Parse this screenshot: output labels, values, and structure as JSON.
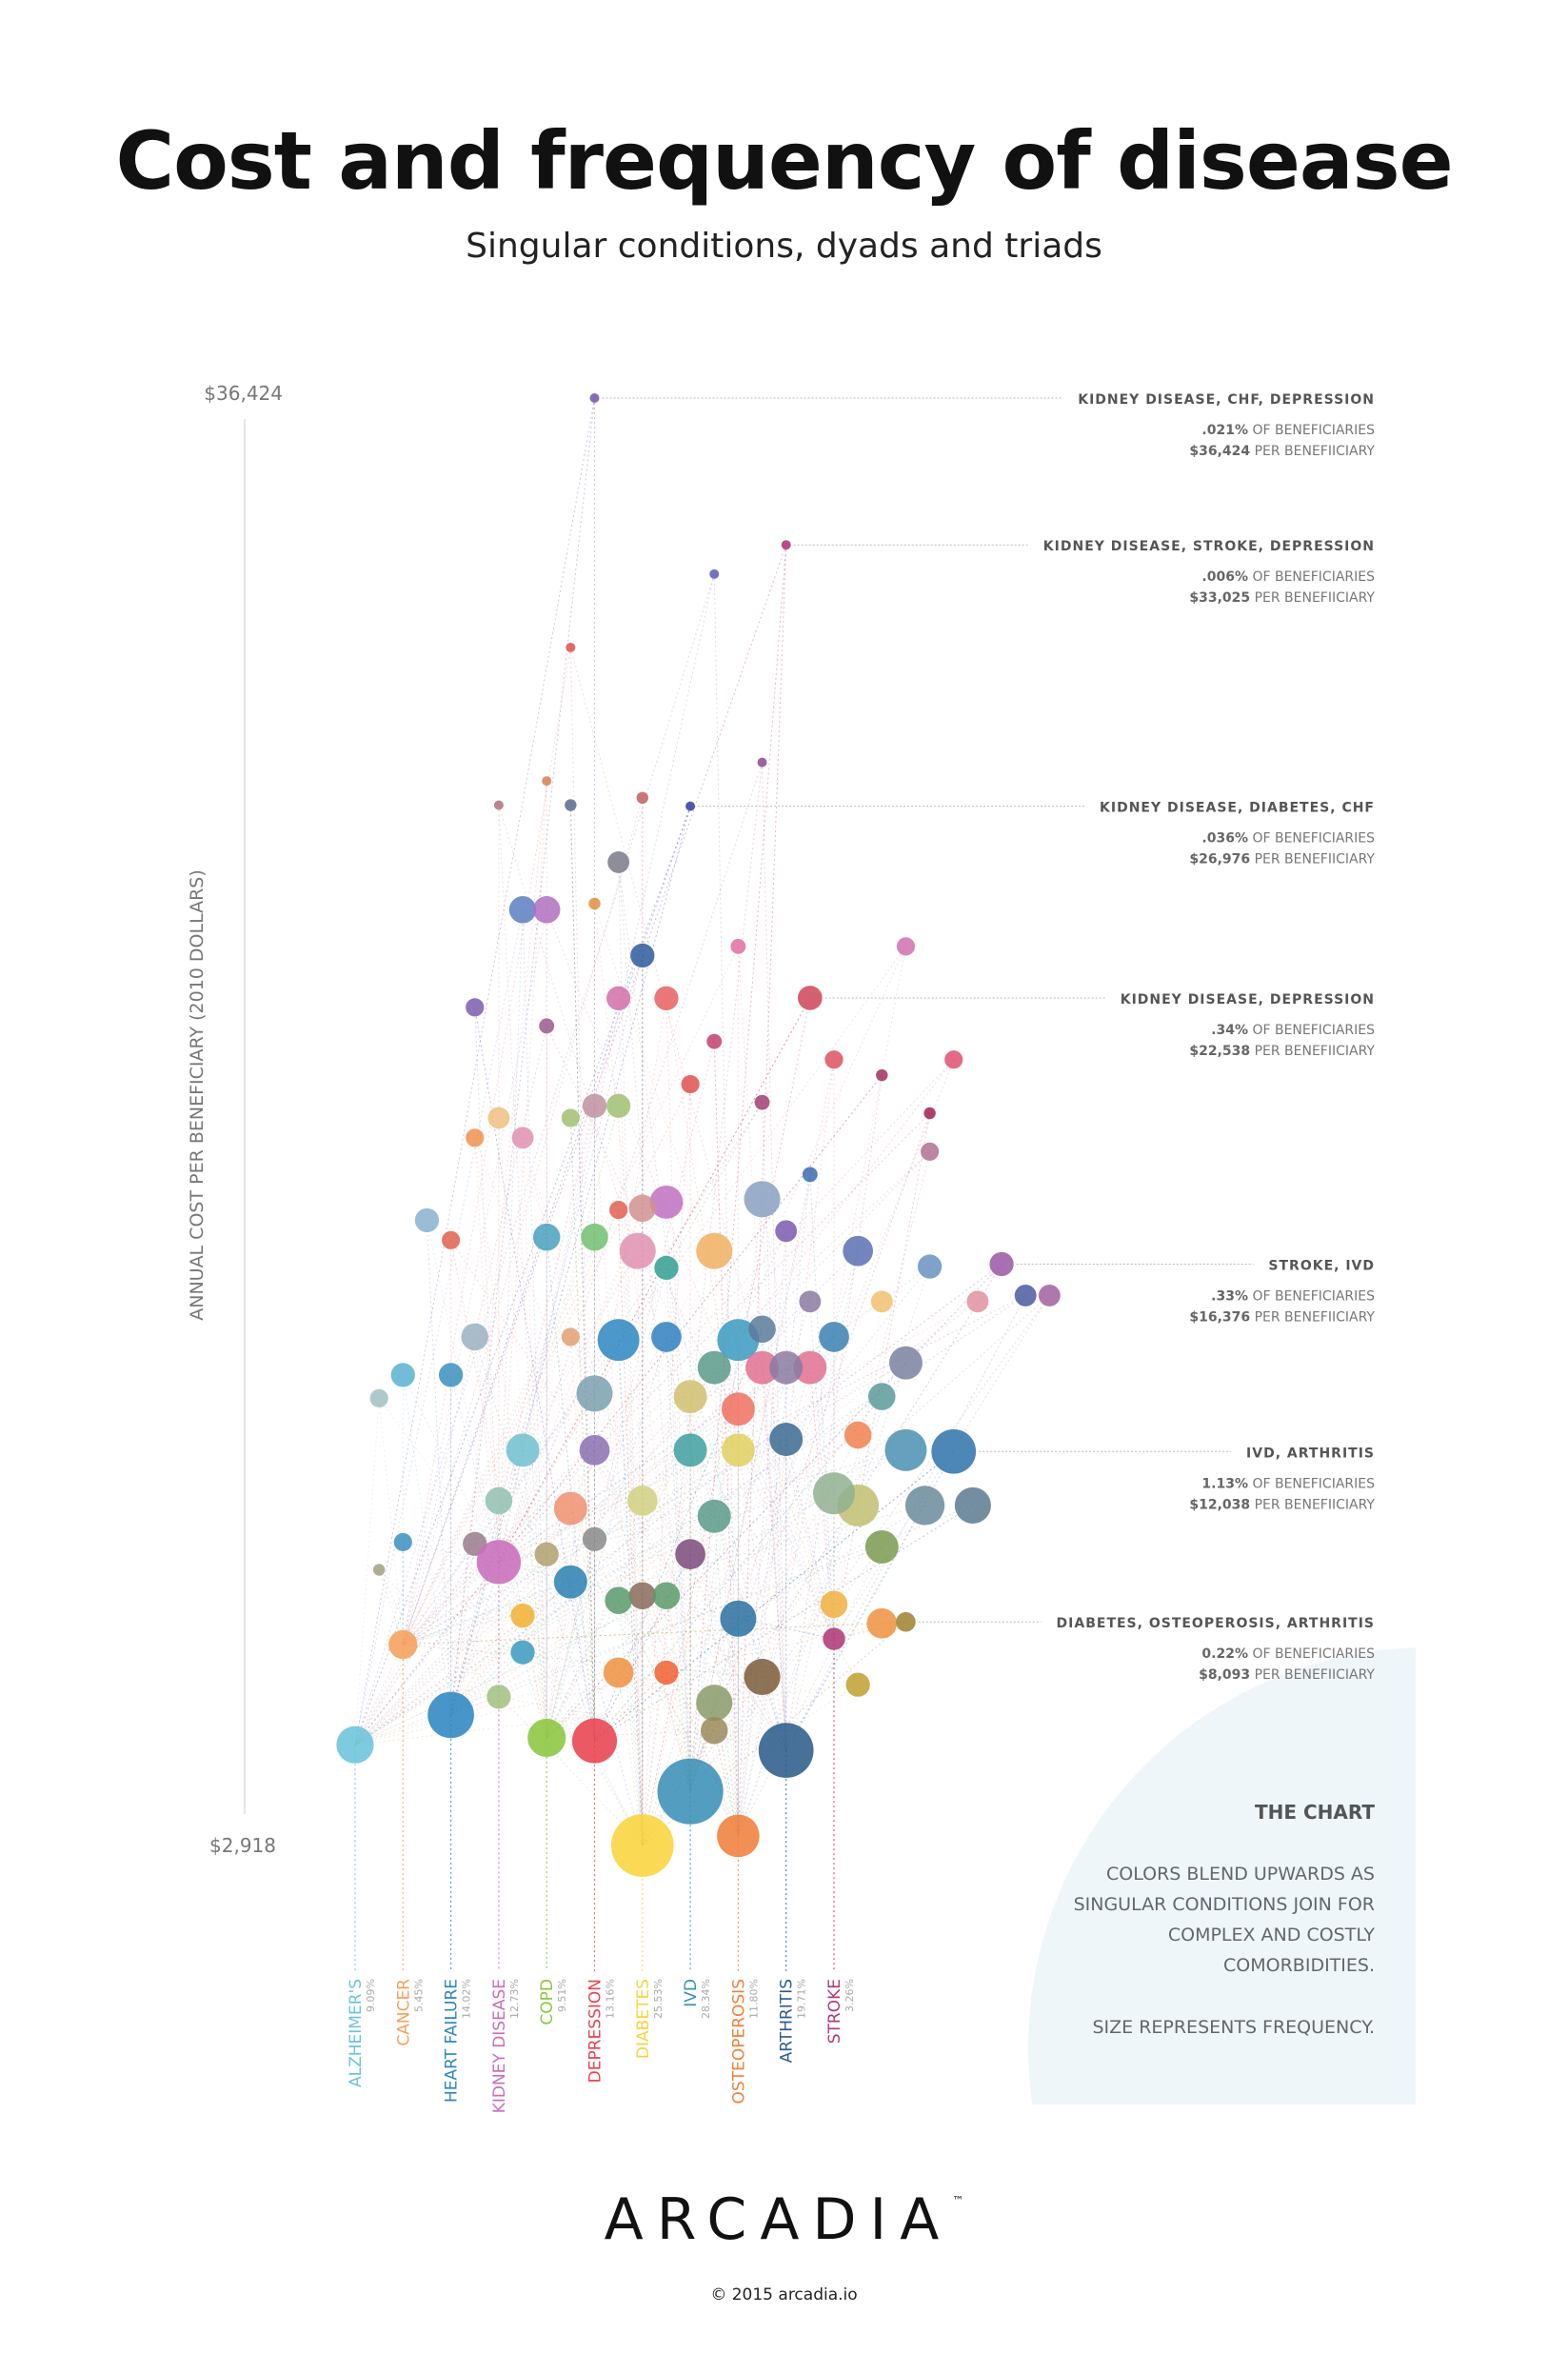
{
  "header": {
    "title": "Cost and frequency of disease",
    "subtitle": "Singular conditions, dyads and triads"
  },
  "chart_data": {
    "type": "scatter",
    "subtype": "bubble",
    "ylabel": "ANNUAL COST PER BENEFICIARY (2010 DOLLARS)",
    "ylim": [
      2918,
      36424
    ],
    "y_tick_labels": [
      "$36,424",
      "$2,918"
    ],
    "size_encoding": "frequency (% of beneficiaries)",
    "grid": false,
    "categories": [
      {
        "name": "ALZHEIMER'S",
        "pct_label": "9.09%",
        "pct": 9.09,
        "cost": 5250,
        "color": "#6cc3d9"
      },
      {
        "name": "CANCER",
        "pct_label": "5.45%",
        "pct": 5.45,
        "cost": 7570,
        "color": "#f5a05a"
      },
      {
        "name": "HEART FAILURE",
        "pct_label": "14.02%",
        "pct": 14.02,
        "cost": 5940,
        "color": "#2e86c1"
      },
      {
        "name": "KIDNEY DISEASE",
        "pct_label": "12.73%",
        "pct": 12.73,
        "cost": 9480,
        "color": "#c86dbb"
      },
      {
        "name": "COPD",
        "pct_label": "9.51%",
        "pct": 9.51,
        "cost": 5410,
        "color": "#8cc63f"
      },
      {
        "name": "DEPRESSION",
        "pct_label": "13.16%",
        "pct": 13.16,
        "cost": 5340,
        "color": "#e8434f"
      },
      {
        "name": "DIABETES",
        "pct_label": "25.53%",
        "pct": 25.53,
        "cost": 2918,
        "color": "#f9d43c"
      },
      {
        "name": "IVD",
        "pct_label": "28.34%",
        "pct": 28.34,
        "cost": 4170,
        "color": "#3a8fb7"
      },
      {
        "name": "OSTEOPEROSIS",
        "pct_label": "11.80%",
        "pct": 11.8,
        "cost": 3140,
        "color": "#f0803c"
      },
      {
        "name": "ARTHRITIS",
        "pct_label": "19.71%",
        "pct": 19.71,
        "cost": 5120,
        "color": "#2f5d8c"
      },
      {
        "name": "STROKE",
        "pct_label": "3.26%",
        "pct": 3.26,
        "cost": 7700,
        "color": "#b03a7a"
      }
    ],
    "annotations": [
      {
        "label": "KIDNEY DISEASE, CHF, DEPRESSION",
        "pct_text": ".021%",
        "cost_text": "$36,424",
        "pct": 0.021,
        "cost": 36424,
        "x": 5.0,
        "color": "#7a5db0"
      },
      {
        "label": "KIDNEY DISEASE, STROKE, DEPRESSION",
        "pct_text": ".006%",
        "cost_text": "$33,025",
        "pct": 0.006,
        "cost": 33025,
        "x": 9.0,
        "color": "#b03a7a"
      },
      {
        "label": "KIDNEY DISEASE, DIABETES, CHF",
        "pct_text": ".036%",
        "cost_text": "$26,976",
        "pct": 0.036,
        "cost": 26976,
        "x": 7.0,
        "color": "#3a4aa0"
      },
      {
        "label": "KIDNEY DISEASE, DEPRESSION",
        "pct_text": ".34%",
        "cost_text": "$22,538",
        "pct": 0.34,
        "cost": 22538,
        "x": 9.5,
        "color": "#d05060"
      },
      {
        "label": "STROKE, IVD",
        "pct_text": ".33%",
        "cost_text": "$16,376",
        "pct": 0.33,
        "cost": 16376,
        "x": 13.5,
        "color": "#a060a8"
      },
      {
        "label": "IVD, ARTHRITIS",
        "pct_text": "1.13%",
        "cost_text": "$12,038",
        "pct": 1.13,
        "cost": 12038,
        "x": 12.5,
        "color": "#3a7ab0"
      },
      {
        "label": "DIABETES, OSTEOPEROSIS, ARTHRITIS",
        "pct_text": "0.22%",
        "cost_text": "$8,093",
        "pct": 0.22,
        "cost": 8093,
        "x": 11.5,
        "color": "#a08a3a"
      }
    ],
    "annotation_suffix_pct": "OF BENEFICIARIES",
    "annotation_suffix_cost": "PER BENEFIICIARY",
    "other_points_fields": [
      "x",
      "cost",
      "pct",
      "color"
    ],
    "other_points": [
      [
        7.5,
        32350,
        0.05,
        "#5a5db0"
      ],
      [
        4.5,
        30650,
        0.05,
        "#e05050"
      ],
      [
        8.5,
        27990,
        0.02,
        "#8a4a8a"
      ],
      [
        4.0,
        27560,
        0.05,
        "#d08050"
      ],
      [
        3.0,
        27000,
        0.05,
        "#b07080"
      ],
      [
        4.5,
        27000,
        0.08,
        "#5a6a8a"
      ],
      [
        6.0,
        27170,
        0.08,
        "#c06060"
      ],
      [
        5.5,
        25680,
        0.27,
        "#7a7a8a"
      ],
      [
        11.5,
        23730,
        0.19,
        "#d070b0"
      ],
      [
        8.0,
        23730,
        0.13,
        "#e070a0"
      ],
      [
        5.0,
        24720,
        0.08,
        "#e09040"
      ],
      [
        3.5,
        24580,
        0.42,
        "#5b7fc0"
      ],
      [
        4.0,
        24580,
        0.42,
        "#b06fc0"
      ],
      [
        6.0,
        23520,
        0.33,
        "#2e5a9c"
      ],
      [
        5.5,
        22530,
        0.33,
        "#d46fa8"
      ],
      [
        6.5,
        22530,
        0.33,
        "#e86060"
      ],
      [
        2.5,
        22320,
        0.19,
        "#7a5db0"
      ],
      [
        12.5,
        21110,
        0.19,
        "#e05070"
      ],
      [
        10.0,
        21110,
        0.19,
        "#e05060"
      ],
      [
        7.5,
        21530,
        0.13,
        "#c04070"
      ],
      [
        11.0,
        20750,
        0.08,
        "#a03060"
      ],
      [
        12.0,
        19870,
        0.08,
        "#a02050"
      ],
      [
        8.5,
        20120,
        0.13,
        "#a04070"
      ],
      [
        4.0,
        21890,
        0.13,
        "#9a5a8a"
      ],
      [
        5.0,
        20040,
        0.33,
        "#c090a0"
      ],
      [
        5.5,
        20040,
        0.33,
        "#a0c070"
      ],
      [
        3.0,
        19760,
        0.27,
        "#f0c080"
      ],
      [
        4.5,
        19760,
        0.19,
        "#a0c070"
      ],
      [
        7.0,
        20540,
        0.19,
        "#e05050"
      ],
      [
        3.5,
        19300,
        0.27,
        "#e090b0"
      ],
      [
        2.5,
        19300,
        0.19,
        "#f09050"
      ],
      [
        12.0,
        18980,
        0.19,
        "#b07090"
      ],
      [
        8.5,
        17880,
        0.75,
        "#8aa0c0"
      ],
      [
        6.5,
        17810,
        0.63,
        "#c070c0"
      ],
      [
        5.9,
        16680,
        0.75,
        "#e090b0"
      ],
      [
        7.5,
        16680,
        0.75,
        "#f0b060"
      ],
      [
        1.5,
        17390,
        0.33,
        "#8ab0d0"
      ],
      [
        2.0,
        16930,
        0.19,
        "#e06050"
      ],
      [
        4.0,
        17000,
        0.42,
        "#4aa0c0"
      ],
      [
        5.0,
        17000,
        0.42,
        "#70c070"
      ],
      [
        10.5,
        16680,
        0.52,
        "#5a70b0"
      ],
      [
        12.0,
        16320,
        0.33,
        "#6a90c0"
      ],
      [
        14.0,
        15650,
        0.27,
        "#4a5aa0"
      ],
      [
        14.5,
        15650,
        0.27,
        "#a060a0"
      ],
      [
        13.0,
        15510,
        0.27,
        "#e090a0"
      ],
      [
        11.0,
        15510,
        0.27,
        "#f0c070"
      ],
      [
        9.5,
        15510,
        0.27,
        "#8a7aa0"
      ],
      [
        10.0,
        14690,
        0.52,
        "#3a80b0"
      ],
      [
        6.5,
        14690,
        0.52,
        "#2e80c0"
      ],
      [
        2.5,
        14690,
        0.42,
        "#9ab0c0"
      ],
      [
        5.5,
        14620,
        1.0,
        "#2e86c1"
      ],
      [
        8.0,
        14620,
        1.0,
        "#3a9ac0"
      ],
      [
        11.5,
        14090,
        0.63,
        "#7a80a0"
      ],
      [
        8.5,
        13980,
        0.63,
        "#e07090"
      ],
      [
        9.5,
        13980,
        0.63,
        "#e07090"
      ],
      [
        9.0,
        13980,
        0.63,
        "#8a7aa0"
      ],
      [
        7.5,
        13980,
        0.63,
        "#5a9a8a"
      ],
      [
        1.0,
        13810,
        0.33,
        "#5ab0d0"
      ],
      [
        2.0,
        13810,
        0.33,
        "#3a90c0"
      ],
      [
        5.0,
        13380,
        0.75,
        "#7aa0b0"
      ],
      [
        11.0,
        13310,
        0.42,
        "#5a9a9a"
      ],
      [
        8.0,
        13020,
        0.63,
        "#f07060"
      ],
      [
        7.0,
        13310,
        0.63,
        "#d0c070"
      ],
      [
        3.5,
        12070,
        0.63,
        "#70c0d0"
      ],
      [
        5.0,
        12070,
        0.52,
        "#8a70b0"
      ],
      [
        7.0,
        12070,
        0.63,
        "#40a0a0"
      ],
      [
        8.0,
        12070,
        0.63,
        "#e0d060"
      ],
      [
        9.0,
        12320,
        0.63,
        "#3a6a90"
      ],
      [
        10.5,
        12420,
        0.42,
        "#f08050"
      ],
      [
        11.5,
        12070,
        1.0,
        "#4a90b0"
      ],
      [
        11.9,
        10790,
        0.88,
        "#6a8a9a"
      ],
      [
        12.9,
        10790,
        0.75,
        "#5a7a90"
      ],
      [
        10.5,
        10790,
        1.0,
        "#c0c070"
      ],
      [
        11.0,
        9830,
        0.63,
        "#7a9a50"
      ],
      [
        4.5,
        10720,
        0.63,
        "#f09070"
      ],
      [
        3.0,
        10900,
        0.42,
        "#90c0b0"
      ],
      [
        6.0,
        10900,
        0.52,
        "#d0d080"
      ],
      [
        7.5,
        10540,
        0.63,
        "#5a9a8a"
      ],
      [
        10.0,
        11070,
        1.0,
        "#90b090"
      ],
      [
        2.5,
        9900,
        0.33,
        "#9a7a8a"
      ],
      [
        4.0,
        9660,
        0.33,
        "#b0a070"
      ],
      [
        5.0,
        10010,
        0.33,
        "#8a8a8a"
      ],
      [
        7.0,
        9660,
        0.52,
        "#7a4a7a"
      ],
      [
        4.5,
        9020,
        0.63,
        "#2a80b0"
      ],
      [
        6.0,
        8700,
        0.42,
        "#8a6a5a"
      ],
      [
        5.5,
        8590,
        0.42,
        "#5a9a6a"
      ],
      [
        6.5,
        8700,
        0.42,
        "#5a9a6a"
      ],
      [
        8.0,
        8170,
        0.75,
        "#2a70a0"
      ],
      [
        10.0,
        8500,
        0.42,
        "#f0b040"
      ],
      [
        11.0,
        8060,
        0.52,
        "#f09040"
      ],
      [
        3.5,
        8240,
        0.33,
        "#f0b030"
      ],
      [
        3.5,
        7390,
        0.33,
        "#3a9ac0"
      ],
      [
        5.5,
        6920,
        0.52,
        "#f09040"
      ],
      [
        6.5,
        6920,
        0.33,
        "#f06030"
      ],
      [
        8.5,
        6820,
        0.75,
        "#7a5a3a"
      ],
      [
        7.5,
        6220,
        0.75,
        "#8a9a6a"
      ],
      [
        7.5,
        5580,
        0.42,
        "#9a8a5a"
      ],
      [
        3.0,
        6360,
        0.33,
        "#a0c080"
      ],
      [
        10.5,
        6640,
        0.33,
        "#c0a030"
      ],
      [
        0.5,
        13270,
        0.19,
        "#a0c0c0"
      ],
      [
        1.0,
        9940,
        0.19,
        "#3a90c0"
      ],
      [
        0.5,
        9300,
        0.08,
        "#a0a080"
      ],
      [
        6.0,
        17670,
        0.42,
        "#d09090"
      ],
      [
        6.5,
        16290,
        0.33,
        "#30a090"
      ],
      [
        8.5,
        14870,
        0.42,
        "#5a7a9a"
      ],
      [
        5.5,
        17630,
        0.19,
        "#e06050"
      ],
      [
        9.5,
        18450,
        0.13,
        "#3a6ab0"
      ],
      [
        9.0,
        17140,
        0.27,
        "#7a5ab0"
      ],
      [
        4.5,
        14690,
        0.19,
        "#e0a070"
      ]
    ]
  },
  "info_box": {
    "heading": "THE CHART",
    "lines": [
      "COLORS BLEND UPWARDS AS",
      "SINGULAR CONDITIONS JOIN FOR",
      "COMPLEX AND COSTLY",
      "COMORBIDITIES."
    ],
    "footer": "SIZE REPRESENTS FREQUENCY.",
    "color": "#eef6fa"
  },
  "footer": {
    "logo": "ARCADIA",
    "trademark": "™",
    "copyright": "© 2015 arcadia.io"
  }
}
